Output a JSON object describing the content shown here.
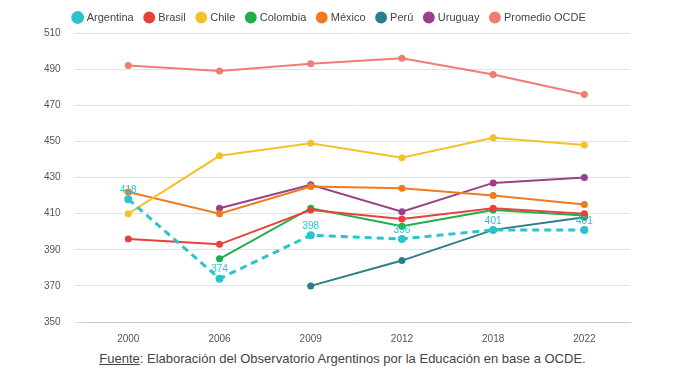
{
  "chart_data": {
    "type": "line",
    "categories": [
      "2000",
      "2006",
      "2009",
      "2012",
      "2018",
      "2022"
    ],
    "series": [
      {
        "name": "Argentina",
        "color": "#2bc4cc",
        "line_style": "dashed",
        "marker": "circle",
        "data_labels": true,
        "values": [
          418,
          374,
          398,
          396,
          401,
          401
        ]
      },
      {
        "name": "Brasil",
        "color": "#e8413c",
        "line_style": "solid",
        "marker": "circle",
        "values": [
          396,
          393,
          412,
          407,
          413,
          410
        ]
      },
      {
        "name": "Chile",
        "color": "#f5c12a",
        "line_style": "solid",
        "marker": "circle",
        "values": [
          410,
          442,
          449,
          441,
          452,
          448
        ]
      },
      {
        "name": "Colombia",
        "color": "#1fae4a",
        "line_style": "solid",
        "marker": "circle",
        "values": [
          null,
          385,
          413,
          403,
          412,
          409
        ]
      },
      {
        "name": "México",
        "color": "#ef7a22",
        "line_style": "solid",
        "marker": "circle",
        "values": [
          422,
          410,
          425,
          424,
          420,
          415
        ]
      },
      {
        "name": "Perú",
        "color": "#2a7f8a",
        "line_style": "solid",
        "marker": "circle",
        "values": [
          null,
          null,
          370,
          384,
          401,
          408
        ]
      },
      {
        "name": "Uruguay",
        "color": "#9b3f8a",
        "line_style": "solid",
        "marker": "circle",
        "values": [
          null,
          413,
          426,
          411,
          427,
          430
        ]
      },
      {
        "name": "Promedio OCDE",
        "color": "#f07c74",
        "line_style": "solid",
        "marker": "circle",
        "values": [
          492,
          489,
          493,
          496,
          487,
          476
        ]
      }
    ],
    "ylim": [
      350,
      510
    ],
    "yticks": [
      350,
      370,
      390,
      410,
      430,
      450,
      470,
      490,
      510
    ],
    "grid": true,
    "legend": "top",
    "note": "Fuente: Elaboración del Observatorio Argentinos por la Educación en base a OCDE."
  }
}
